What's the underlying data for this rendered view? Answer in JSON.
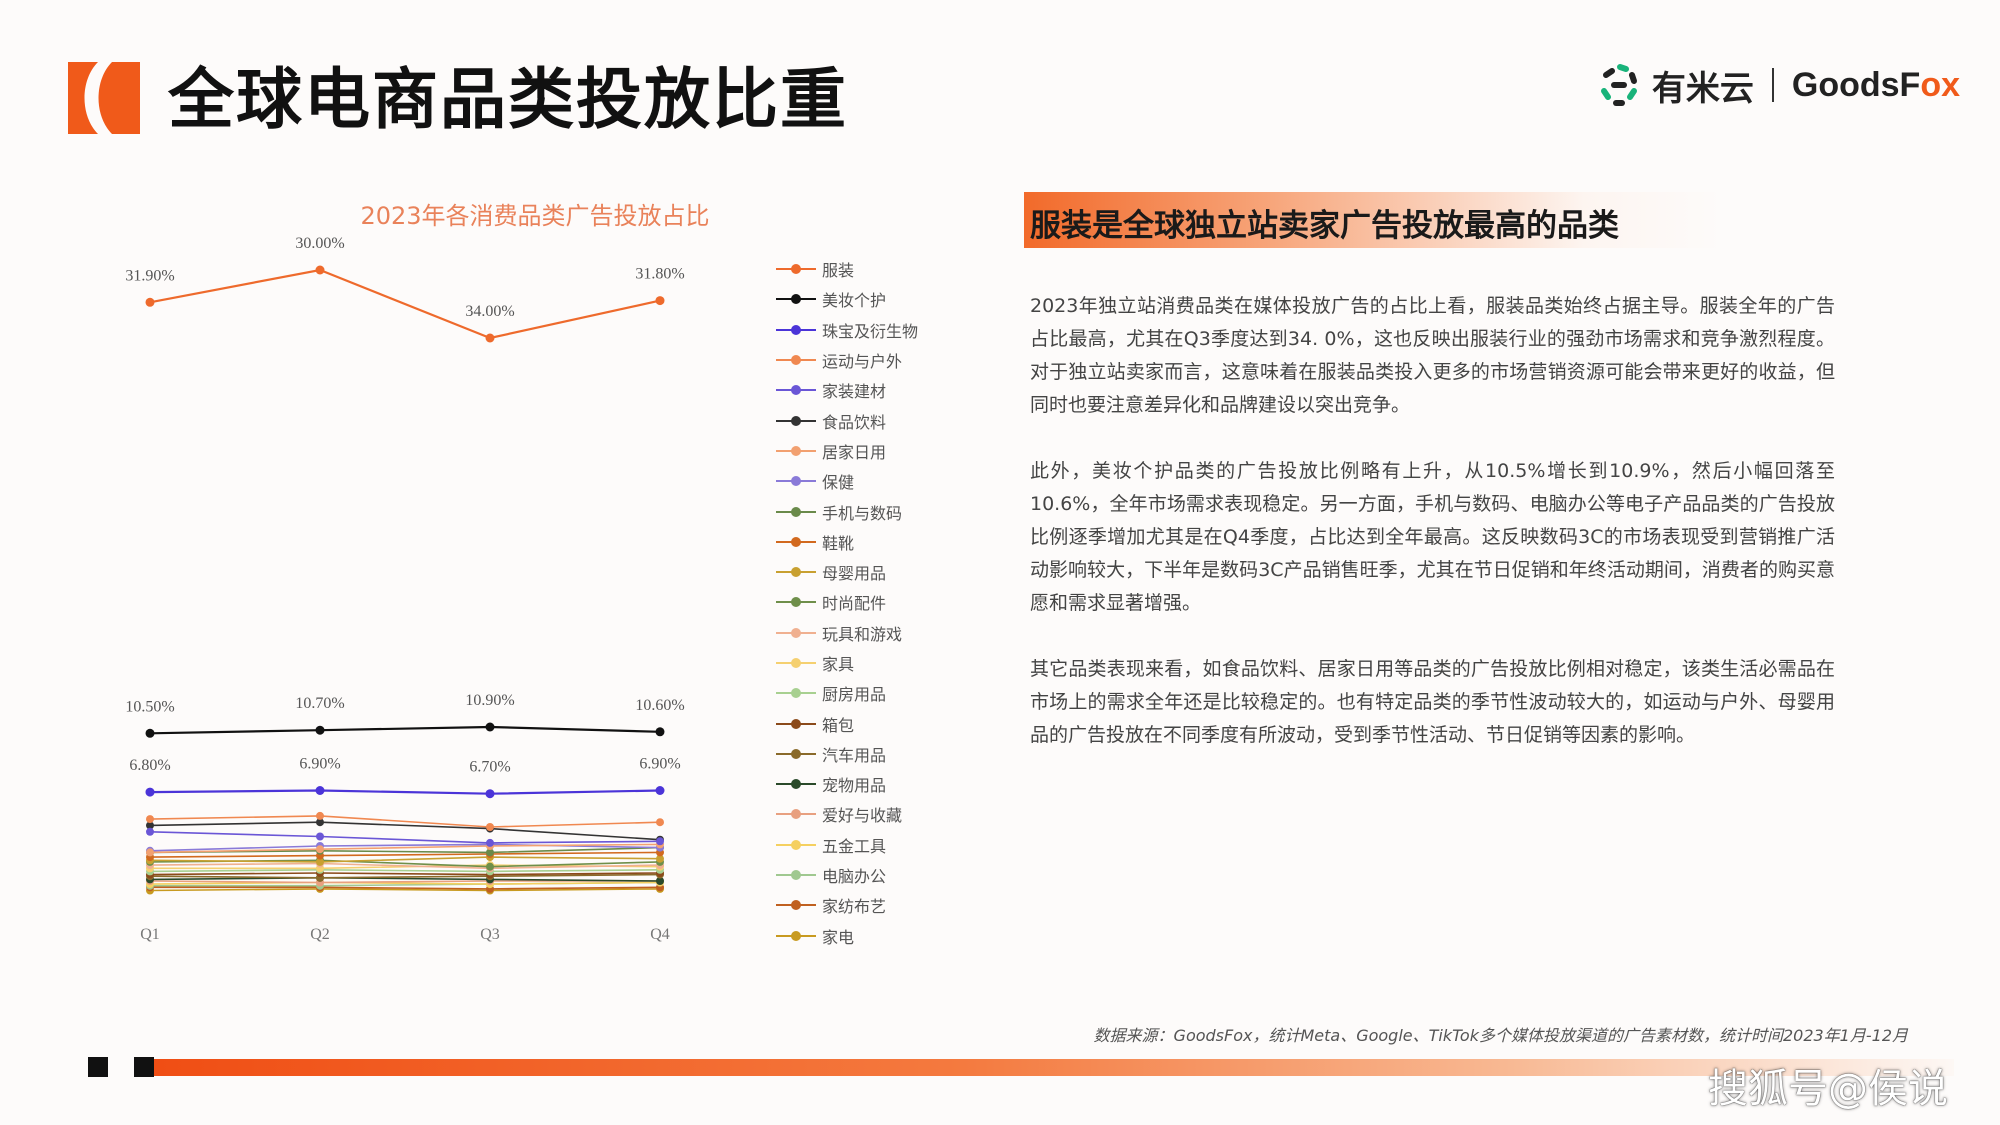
{
  "page": {
    "title": "全球电商品类投放比重",
    "brand_cn": "有米云",
    "brand_en_prefix": "GoodsF",
    "brand_en_accent": "ox",
    "logo_color": "#f05a1a",
    "icons": [
      "brand-d-logo-icon",
      "youmi-swirl-icon"
    ]
  },
  "chart_data": {
    "type": "line",
    "title": "2023年各消费品类广告投放占比",
    "categories": [
      "Q1",
      "Q2",
      "Q3",
      "Q4"
    ],
    "grid": false,
    "legend_position": "right",
    "series": [
      {
        "name": "服装",
        "color": "#ee6a2c",
        "values": [
          31.9,
          30.0,
          34.0,
          31.8
        ],
        "labels": [
          "31.90%",
          "30.00%",
          "34.00%",
          "31.80%"
        ]
      },
      {
        "name": "美妆个护",
        "color": "#111111",
        "values": [
          10.5,
          10.7,
          10.9,
          10.6
        ],
        "labels": [
          "10.50%",
          "10.70%",
          "10.90%",
          "10.60%"
        ]
      },
      {
        "name": "珠宝及衍生物",
        "color": "#4b34d8",
        "values": [
          6.8,
          6.9,
          6.7,
          6.9
        ],
        "labels": [
          "6.80%",
          "6.90%",
          "6.70%",
          "6.90%"
        ]
      },
      {
        "name": "运动与户外",
        "color": "#f08850",
        "values": [
          5.1,
          5.3,
          4.6,
          4.9
        ]
      },
      {
        "name": "家装建材",
        "color": "#6a56d6",
        "values": [
          4.3,
          4.0,
          3.6,
          3.7
        ]
      },
      {
        "name": "食品饮料",
        "color": "#333333",
        "values": [
          4.7,
          4.9,
          4.5,
          3.8
        ]
      },
      {
        "name": "居家日用",
        "color": "#f2a070",
        "values": [
          3.0,
          3.2,
          3.4,
          3.5
        ]
      },
      {
        "name": "保健",
        "color": "#8a7ad8",
        "values": [
          3.1,
          3.4,
          3.5,
          3.3
        ]
      },
      {
        "name": "手机与数码",
        "color": "#6a8a4a",
        "values": [
          3.0,
          3.1,
          3.0,
          3.3
        ]
      },
      {
        "name": "鞋靴",
        "color": "#d2691e",
        "values": [
          2.7,
          2.8,
          2.9,
          3.0
        ]
      },
      {
        "name": "母婴用品",
        "color": "#c8a030",
        "values": [
          2.5,
          2.4,
          2.7,
          2.6
        ]
      },
      {
        "name": "时尚配件",
        "color": "#6f8f4a",
        "values": [
          2.4,
          2.5,
          2.1,
          2.4
        ]
      },
      {
        "name": "玩具和游戏",
        "color": "#f0b090",
        "values": [
          2.2,
          2.3,
          2.0,
          2.2
        ]
      },
      {
        "name": "家具",
        "color": "#f5d070",
        "values": [
          2.0,
          2.0,
          2.2,
          2.1
        ]
      },
      {
        "name": "厨房用品",
        "color": "#a8d090",
        "values": [
          1.8,
          1.9,
          1.8,
          1.9
        ]
      },
      {
        "name": "箱包",
        "color": "#8b4a1a",
        "values": [
          1.6,
          1.7,
          1.6,
          1.7
        ]
      },
      {
        "name": "汽车用品",
        "color": "#8a6a2a",
        "values": [
          1.5,
          1.4,
          1.5,
          1.6
        ]
      },
      {
        "name": "宠物用品",
        "color": "#2a4a2a",
        "values": [
          1.3,
          1.4,
          1.3,
          1.2
        ]
      },
      {
        "name": "爱好与收藏",
        "color": "#e8a080",
        "values": [
          1.2,
          1.1,
          1.2,
          1.2
        ]
      },
      {
        "name": "五金工具",
        "color": "#f5d060",
        "values": [
          1.0,
          1.1,
          1.0,
          1.1
        ]
      },
      {
        "name": "电脑办公",
        "color": "#a0c890",
        "values": [
          0.9,
          0.9,
          1.0,
          1.1
        ]
      },
      {
        "name": "家纺布艺",
        "color": "#c06020",
        "values": [
          0.8,
          0.8,
          0.7,
          0.8
        ]
      },
      {
        "name": "家电",
        "color": "#c89a20",
        "values": [
          0.6,
          0.7,
          0.6,
          0.7
        ]
      }
    ]
  },
  "section": {
    "heading": "服装是全球独立站卖家广告投放最高的品类",
    "paragraphs": [
      "2023年独立站消费品类在媒体投放广告的占比上看，服装品类始终占据主导。服装全年的广告占比最高，尤其在Q3季度达到34. 0%，这也反映出服装行业的强劲市场需求和竞争激烈程度。对于独立站卖家而言，这意味着在服装品类投入更多的市场营销资源可能会带来更好的收益，但同时也要注意差异化和品牌建设以突出竞争。",
      "此外，美妆个护品类的广告投放比例略有上升，从10.5%增长到10.9%，然后小幅回落至10.6%，全年市场需求表现稳定。另一方面，手机与数码、电脑办公等电子产品品类的广告投放比例逐季增加尤其是在Q4季度，占比达到全年最高。这反映数码3C的市场表现受到营销推广活动影响较大，下半年是数码3C产品销售旺季，尤其在节日促销和年终活动期间，消费者的购买意愿和需求显著增强。",
      "其它品类表现来看，如食品饮料、居家日用等品类的广告投放比例相对稳定，该类生活必需品在市场上的需求全年还是比较稳定的。也有特定品类的季节性波动较大的，如运动与户外、母婴用品的广告投放在不同季度有所波动，受到季节性活动、节日促销等因素的影响。"
    ]
  },
  "footer": {
    "source": "数据来源：GoodsFox，统计Meta、Google、TikTok多个媒体投放渠道的广告素材数，统计时间2023年1月-12月",
    "watermark": "搜狐号@侯说"
  }
}
